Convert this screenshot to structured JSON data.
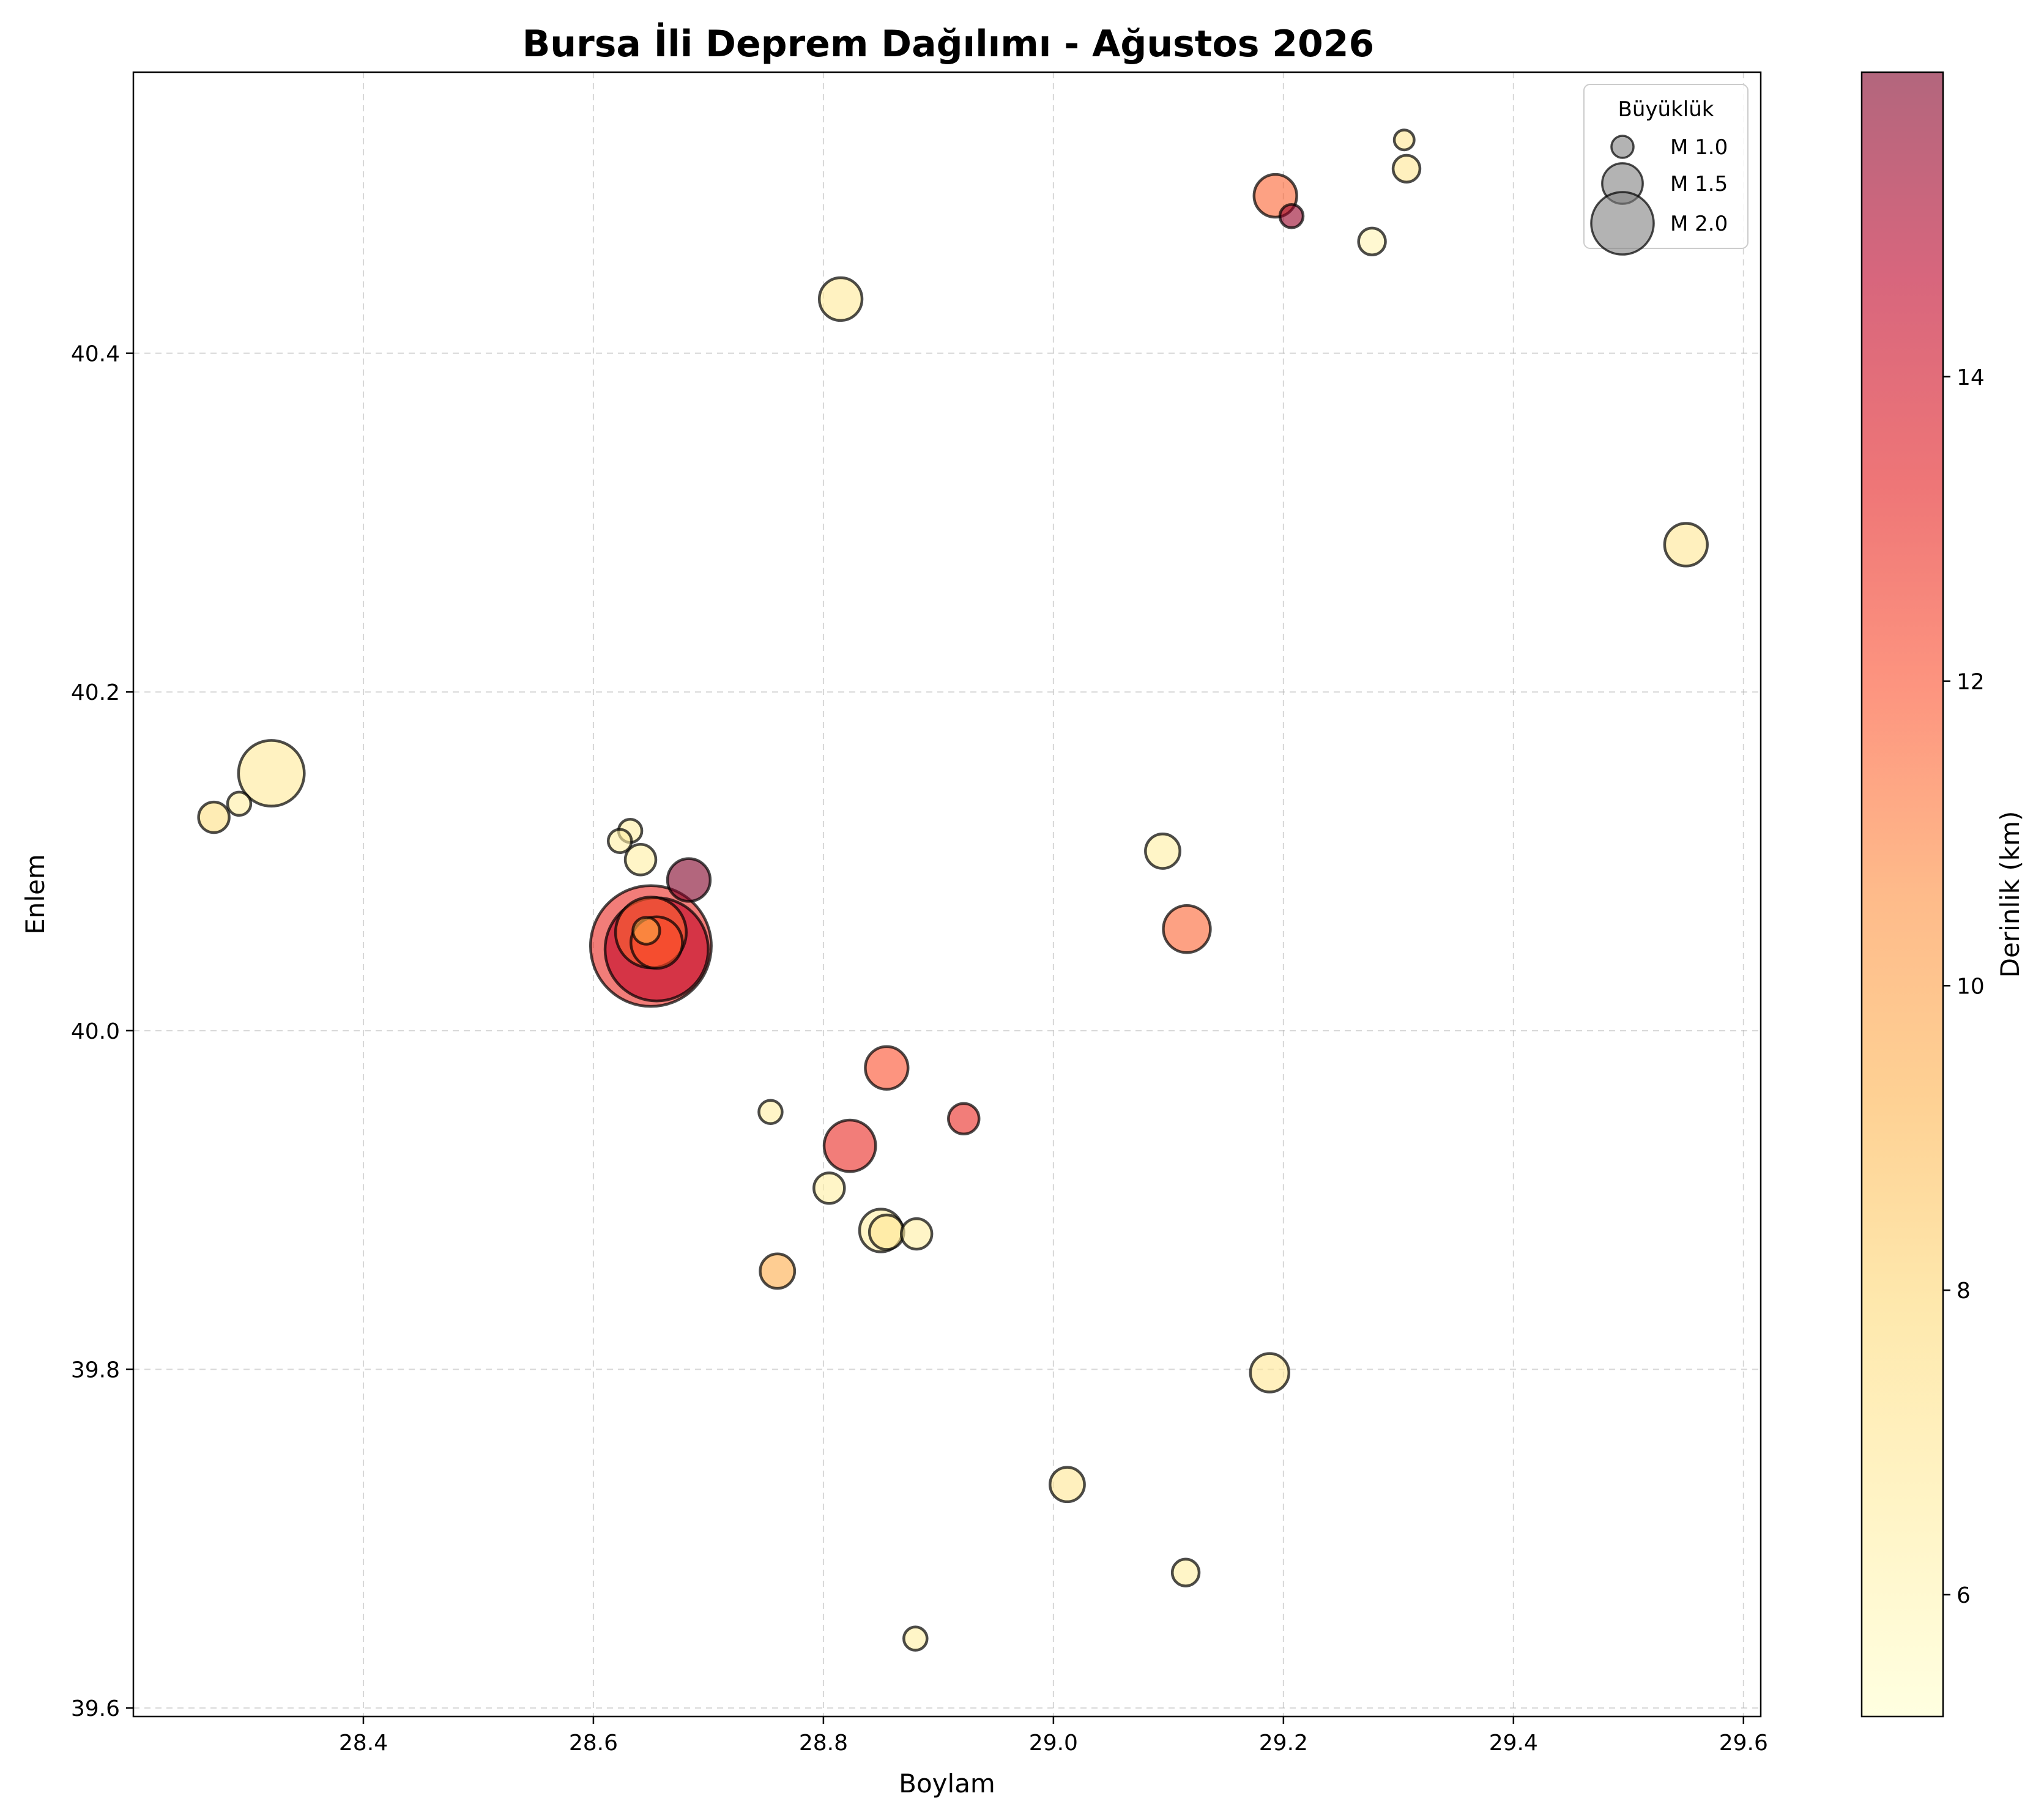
{
  "chart_data": {
    "type": "scatter",
    "title": "Bursa İli Deprem Dağılımı - Ağustos 2026",
    "xlabel": "Boylam",
    "ylabel": "Enlem",
    "xlim": [
      28.2,
      29.615
    ],
    "ylim": [
      39.595,
      40.566
    ],
    "x_ticks": [
      "28.4",
      "28.6",
      "28.8",
      "29.0",
      "29.2",
      "29.4",
      "29.6"
    ],
    "y_ticks": [
      "39.6",
      "39.8",
      "40.0",
      "40.2",
      "40.4"
    ],
    "grid": true,
    "legend": {
      "title": "Büyüklük",
      "placement": "top-right",
      "entries": [
        {
          "label": "M 1.0",
          "magnitude": 1.0
        },
        {
          "label": "M 1.5",
          "magnitude": 1.5
        },
        {
          "label": "M 2.0",
          "magnitude": 2.0
        }
      ]
    },
    "colorbar": {
      "label": "Derinlik (km)",
      "range": [
        5.2,
        16.0
      ],
      "ticks": [
        "6",
        "8",
        "10",
        "12",
        "14"
      ],
      "colormap": [
        "#ffffcc",
        "#ffeda0",
        "#fed976",
        "#feb24c",
        "#fd8d3c",
        "#fc4e2a",
        "#e31a1c",
        "#bd0026",
        "#800026"
      ],
      "alpha": 0.6
    },
    "points": [
      {
        "x": 28.65,
        "y": 40.05,
        "mag": 3.0,
        "depth": 13.0
      },
      {
        "x": 28.655,
        "y": 40.048,
        "mag": 2.7,
        "depth": 14.5
      },
      {
        "x": 28.65,
        "y": 40.058,
        "mag": 2.1,
        "depth": 11.5
      },
      {
        "x": 28.655,
        "y": 40.052,
        "mag": 1.7,
        "depth": 12.0
      },
      {
        "x": 28.646,
        "y": 40.059,
        "mag": 1.1,
        "depth": 9.5
      },
      {
        "x": 28.32,
        "y": 40.152,
        "mag": 2.0,
        "depth": 6.8
      },
      {
        "x": 28.27,
        "y": 40.126,
        "mag": 1.2,
        "depth": 7.5
      },
      {
        "x": 28.292,
        "y": 40.134,
        "mag": 1.0,
        "depth": 6.5
      },
      {
        "x": 28.632,
        "y": 40.118,
        "mag": 1.0,
        "depth": 6.5
      },
      {
        "x": 28.623,
        "y": 40.112,
        "mag": 1.0,
        "depth": 6.5
      },
      {
        "x": 28.641,
        "y": 40.101,
        "mag": 1.2,
        "depth": 6.5
      },
      {
        "x": 28.683,
        "y": 40.089,
        "mag": 1.5,
        "depth": 16.0
      },
      {
        "x": 28.815,
        "y": 40.432,
        "mag": 1.5,
        "depth": 6.8
      },
      {
        "x": 29.193,
        "y": 40.493,
        "mag": 1.5,
        "depth": 11.5
      },
      {
        "x": 29.207,
        "y": 40.481,
        "mag": 1.0,
        "depth": 15.5
      },
      {
        "x": 29.277,
        "y": 40.466,
        "mag": 1.1,
        "depth": 6.0
      },
      {
        "x": 29.305,
        "y": 40.526,
        "mag": 0.9,
        "depth": 7.0
      },
      {
        "x": 29.307,
        "y": 40.509,
        "mag": 1.1,
        "depth": 7.0
      },
      {
        "x": 29.55,
        "y": 40.287,
        "mag": 1.5,
        "depth": 7.0
      },
      {
        "x": 29.095,
        "y": 40.106,
        "mag": 1.3,
        "depth": 6.5
      },
      {
        "x": 29.116,
        "y": 40.06,
        "mag": 1.6,
        "depth": 11.5
      },
      {
        "x": 28.855,
        "y": 39.978,
        "mag": 1.5,
        "depth": 12.0
      },
      {
        "x": 28.922,
        "y": 39.948,
        "mag": 1.2,
        "depth": 13.0
      },
      {
        "x": 28.754,
        "y": 39.952,
        "mag": 1.0,
        "depth": 6.5
      },
      {
        "x": 28.823,
        "y": 39.932,
        "mag": 1.7,
        "depth": 13.0
      },
      {
        "x": 28.805,
        "y": 39.907,
        "mag": 1.2,
        "depth": 6.5
      },
      {
        "x": 28.85,
        "y": 39.882,
        "mag": 1.5,
        "depth": 6.5
      },
      {
        "x": 28.855,
        "y": 39.881,
        "mag": 1.3,
        "depth": 7.0
      },
      {
        "x": 28.881,
        "y": 39.88,
        "mag": 1.2,
        "depth": 6.5
      },
      {
        "x": 28.76,
        "y": 39.858,
        "mag": 1.3,
        "depth": 9.5
      },
      {
        "x": 29.188,
        "y": 39.798,
        "mag": 1.4,
        "depth": 7.0
      },
      {
        "x": 29.012,
        "y": 39.732,
        "mag": 1.3,
        "depth": 7.0
      },
      {
        "x": 29.115,
        "y": 39.68,
        "mag": 1.1,
        "depth": 6.5
      },
      {
        "x": 28.88,
        "y": 39.641,
        "mag": 1.0,
        "depth": 6.5
      }
    ]
  }
}
